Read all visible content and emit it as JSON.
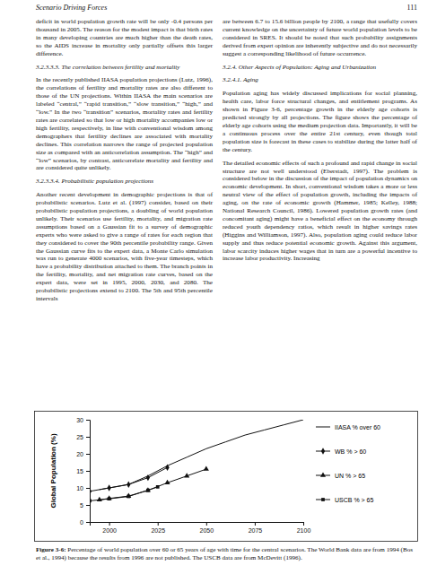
{
  "header": {
    "title": "Scenario Driving Forces",
    "page": "111"
  },
  "columns": [
    [
      {
        "paragraph": "deficit in world population growth rate will be only -0.4 persons per thousand in 2005. The reason for the modest impact is that birth rates in many developing countries are much higher than the death rates, so the AIDS increase in mortality only partially offsets this larger difference."
      },
      {
        "heading": "3.2.3.3.3. The correlation between fertility and mortality"
      },
      {
        "paragraph": "In the recently published IIASA population projections (Lutz, 1996), the correlations of fertility and mortality rates are also different to those of the UN projections. Within IIASA the main scenarios are labeled “central,” “rapid transition,” “slow transition,” “high,” and “low.” In the two “transition” scenarios, mortality rates and fertility rates are correlated so that low or high mortality accompanies low or high fertility, respectively, in line with conventional wisdom among demographers that fertility declines are associated with mortality declines. This correlation narrows the range of projected population size as compared with an anticorrelation assumption. The “high” and “low” scenarios, by contrast, anticorrelate mortality and fertility and are considered quite unlikely."
      },
      {
        "heading": "3.2.3.3.4. Probabilistic population projections"
      },
      {
        "paragraph": "Another recent development in demographic projections is that of probabilistic scenarios. Lutz et al. (1997) consider, based on their probabilistic population projections, a doubling of world population unlikely. Their scenarios use fertility, mortality, and migration rate assumptions based on a Gaussian fit to a survey of demographic experts who were asked to give a range of rates for each region that they considered to cover the 90th percentile probability range. Given the Gaussian curve fits to the expert data, a Monte Carlo simulation was run to generate 4000 scenarios, with five-year timesteps, which have a probability distribution attached to them. The branch points in the fertility, mortality, and net migration rate curves, based on the expert data, were set in 1995, 2000, 2030, and 2080. The probabilistic projections extend to 2100. The 5th and 95th percentile intervals"
      }
    ],
    [
      {
        "paragraph": "are between 6.7 to 15.6 billion people by 2100, a range that usefully covers current knowledge on the uncertainty of future world population levels to be considered in SRES. It should be noted that such probability assignments derived from expert opinion are inherently subjective and do not necessarily suggest a corresponding likelihood of future occurrence."
      },
      {
        "heading": "3.2.4.  Other Aspects of Population: Aging and Urbanization"
      },
      {
        "heading": "3.2.4.1. Aging"
      },
      {
        "paragraph": "Population aging has widely discussed implications for social planning, health care, labor force structural changes, and entitlement programs. As shown in Figure 3-6, percentage growth in the elderly age cohorts is predicted strongly by all projections. The figure shows the percentage of elderly age cohorts using the medium projection data. Importantly, it will be a continuous process over the entire 21st century, even though total population size is forecast in these cases to stabilize during the latter half of the century."
      },
      {
        "paragraph": "The detailed economic effects of such a profound and rapid change in social structure are not well understood (Eberstadt, 1997). The problem is considered below in the discussion of the impact of population dynamics on economic development. In short, conventional wisdom takes a more or less neutral view of the effect of population growth, including the impacts of aging, on the rate of economic growth (Hammer, 1985; Kelley, 1988; National Research Council, 1986). Lowered population growth rates (and concomitant aging) might have a beneficial effect on the economy through reduced youth dependency ratios, which result in higher savings rates (Higgins and Williamson, 1997). Also, population aging could reduce labor supply and thus reduce potential economic growth. Against this argument, labor scarcity induces higher wages that in turn are a powerful incentive to increase labor productivity. Increasing"
      }
    ]
  ],
  "chart_data": {
    "type": "line",
    "ylabel": "Global Population (%)",
    "xlim": [
      1990,
      2100
    ],
    "xticks": [
      2000,
      2025,
      2050,
      2075,
      2100
    ],
    "ylim": [
      0,
      30
    ],
    "yticks": [
      0,
      5,
      10,
      15,
      20,
      25,
      30
    ],
    "legend": "right",
    "series": [
      {
        "name": "IIASA % over 60",
        "color": "#111111",
        "marker": "none",
        "line_style": "solid",
        "x": [
          1995,
          2000,
          2010,
          2020,
          2030,
          2040,
          2050,
          2060,
          2070,
          2080,
          2090,
          2100
        ],
        "values": [
          9.5,
          10,
          11,
          13.5,
          16.5,
          19,
          21.5,
          23.5,
          25.5,
          27,
          28.5,
          30
        ]
      },
      {
        "name": "WB % > 60",
        "color": "#111111",
        "marker": "diamond",
        "line_style": "solid",
        "x": [
          1990,
          2000,
          2010,
          2020,
          2030
        ],
        "values": [
          9,
          10,
          11,
          13,
          16
        ]
      },
      {
        "name": "UN % > 65",
        "color": "#111111",
        "marker": "triangle",
        "line_style": "solid",
        "x": [
          1995,
          2000,
          2010,
          2020,
          2030,
          2040,
          2050
        ],
        "values": [
          6.5,
          6.9,
          7.6,
          9.3,
          11.5,
          13.5,
          15.5
        ]
      },
      {
        "name": "USCB % > 65",
        "color": "#111111",
        "marker": "square",
        "line_style": "solid",
        "x": [
          1990,
          2000,
          2010,
          2020,
          2025
        ],
        "values": [
          6.2,
          6.8,
          7.5,
          9.3,
          10.3
        ]
      }
    ]
  },
  "caption": {
    "label": "Figure 3-6:",
    "text": " Percentage of world population over 60 or 65 years of age with time for the central scenarios. The World Bank data are from 1994 (Bos et al., 1994) because the results from 1996 are not published. The USCB data are from McDevitt (1996)."
  }
}
